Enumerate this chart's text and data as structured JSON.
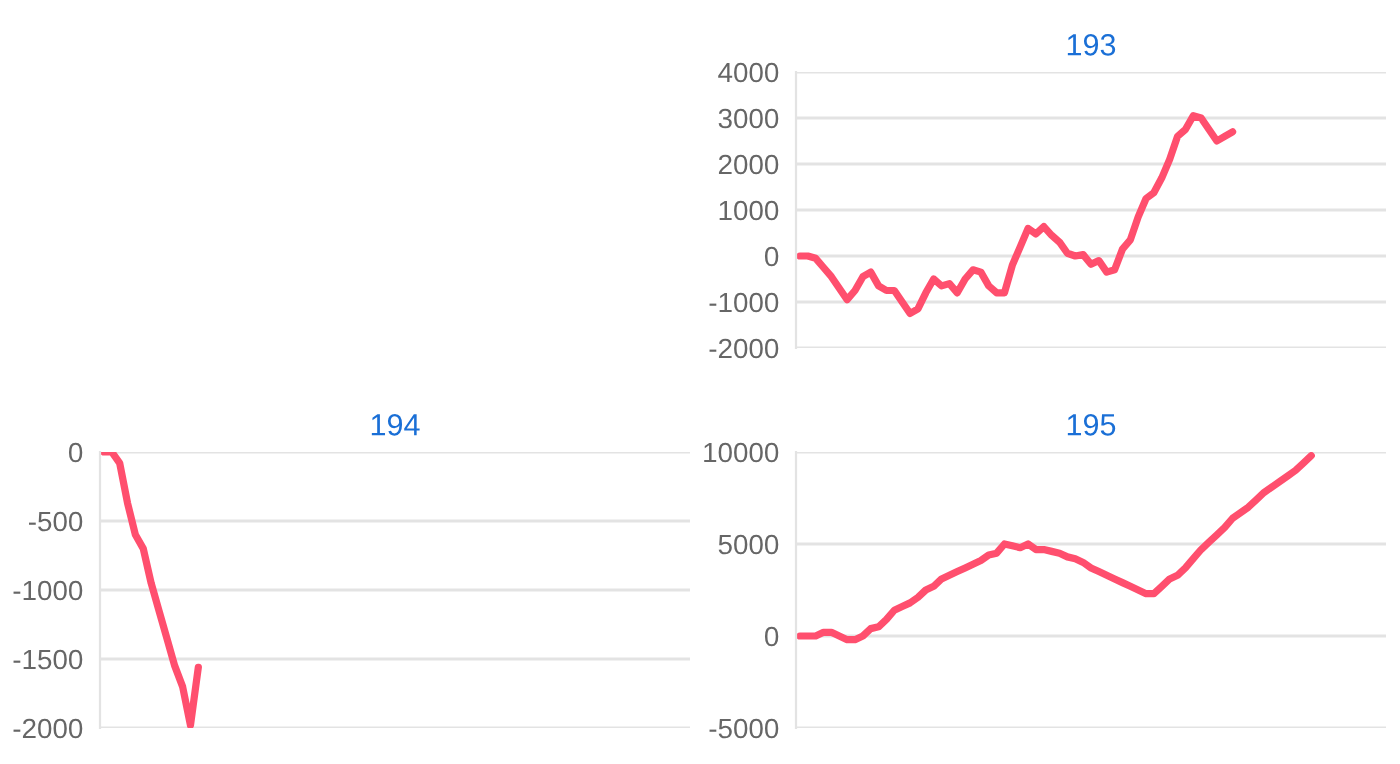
{
  "chart_data": [
    {
      "type": "line",
      "title": "193",
      "grid": "y",
      "ylim": [
        -2000,
        4000
      ],
      "yticks": [
        -2000,
        -1000,
        0,
        1000,
        2000,
        3000,
        4000
      ],
      "categories": [
        null,
        null,
        null,
        null,
        null,
        null,
        null,
        null,
        null,
        null,
        null,
        null,
        null,
        null,
        null,
        null,
        null,
        null,
        null,
        null,
        null,
        null,
        null,
        null,
        null,
        null,
        null,
        null,
        null,
        null,
        null,
        null,
        null,
        null,
        null,
        null,
        null,
        null,
        null,
        null,
        null,
        null,
        null,
        null,
        null,
        null,
        null,
        null,
        null,
        null,
        null,
        null,
        null,
        null,
        null,
        null,
        null,
        null,
        null,
        null,
        null,
        null,
        null,
        null,
        null,
        null,
        null,
        null,
        null,
        null,
        null,
        null,
        null,
        null,
        null
      ],
      "series": [
        {
          "color": "#ff4f6e",
          "values": [
            0,
            0,
            -50,
            -250,
            -450,
            -700,
            -950,
            -750,
            -450,
            -350,
            -650,
            -750,
            -750,
            -1000,
            -1250,
            -1150,
            -800,
            -500,
            -650,
            -600,
            -800,
            -500,
            -300,
            -350,
            -650,
            -800,
            -800,
            -200,
            200,
            600,
            480,
            640,
            450,
            300,
            60,
            0,
            30,
            -180,
            -100,
            -350,
            -300,
            150,
            350,
            850,
            1250,
            1380,
            1700,
            2100,
            2600,
            2750,
            3050,
            3000,
            2750,
            2500,
            2600,
            2700,
            null,
            null,
            null,
            null,
            null,
            null,
            null,
            null,
            null,
            null,
            null,
            null,
            null,
            null,
            null,
            null,
            null,
            null,
            null
          ]
        }
      ]
    },
    {
      "type": "line",
      "title": "194",
      "grid": "y",
      "ylim": [
        -2000,
        0
      ],
      "yticks": [
        -2000,
        -1500,
        -1000,
        -500,
        0
      ],
      "categories": [
        null,
        null,
        null,
        null,
        null,
        null,
        null,
        null,
        null,
        null,
        null,
        null,
        null,
        null,
        null,
        null,
        null,
        null,
        null,
        null,
        null,
        null,
        null,
        null,
        null,
        null,
        null,
        null,
        null,
        null,
        null,
        null,
        null,
        null,
        null,
        null,
        null,
        null,
        null,
        null,
        null,
        null,
        null,
        null,
        null,
        null,
        null,
        null,
        null,
        null,
        null,
        null,
        null,
        null,
        null,
        null,
        null,
        null,
        null,
        null,
        null,
        null,
        null,
        null,
        null,
        null,
        null,
        null,
        null,
        null,
        null,
        null,
        null,
        null,
        null
      ],
      "series": [
        {
          "color": "#ff4f6e",
          "values": [
            0,
            0,
            -80,
            -370,
            -600,
            -700,
            -950,
            -1150,
            -1350,
            -1550,
            -1700,
            -1980,
            -1560,
            null,
            null,
            null,
            null,
            null,
            null,
            null,
            null,
            null,
            null,
            null,
            null,
            null,
            null,
            null,
            null,
            null,
            null,
            null,
            null,
            null,
            null,
            null,
            null,
            null,
            null,
            null,
            null,
            null,
            null,
            null,
            null,
            null,
            null,
            null,
            null,
            null,
            null,
            null,
            null,
            null,
            null,
            null,
            null,
            null,
            null,
            null,
            null,
            null,
            null,
            null,
            null,
            null,
            null,
            null,
            null,
            null,
            null,
            null,
            null,
            null,
            null
          ]
        }
      ]
    },
    {
      "type": "line",
      "title": "195",
      "grid": "y",
      "ylim": [
        -5000,
        10000
      ],
      "yticks": [
        -5000,
        0,
        5000,
        10000
      ],
      "categories": [
        null,
        null,
        null,
        null,
        null,
        null,
        null,
        null,
        null,
        null,
        null,
        null,
        null,
        null,
        null,
        null,
        null,
        null,
        null,
        null,
        null,
        null,
        null,
        null,
        null,
        null,
        null,
        null,
        null,
        null,
        null,
        null,
        null,
        null,
        null,
        null,
        null,
        null,
        null,
        null,
        null,
        null,
        null,
        null,
        null,
        null,
        null,
        null,
        null,
        null,
        null,
        null,
        null,
        null,
        null,
        null,
        null,
        null,
        null,
        null,
        null,
        null,
        null,
        null,
        null,
        null,
        null,
        null,
        null,
        null,
        null,
        null,
        null,
        null,
        null
      ],
      "series": [
        {
          "color": "#ff4f6e",
          "values": [
            0,
            0,
            0,
            200,
            200,
            0,
            -200,
            -200,
            0,
            400,
            500,
            900,
            1400,
            1600,
            1800,
            2100,
            2500,
            2700,
            3100,
            3300,
            3500,
            3700,
            3900,
            4100,
            4400,
            4500,
            5000,
            4900,
            4800,
            5000,
            4700,
            4700,
            4600,
            4500,
            4300,
            4200,
            4000,
            3700,
            3500,
            3300,
            3100,
            2900,
            2700,
            2500,
            2300,
            2300,
            2700,
            3100,
            3300,
            3700,
            4200,
            4700,
            5100,
            5500,
            5900,
            6400,
            6700,
            7000,
            7400,
            7800,
            8100,
            8400,
            8700,
            9000,
            9400,
            9800,
            null,
            null,
            null,
            null,
            null,
            null,
            null,
            null,
            null
          ]
        }
      ]
    }
  ]
}
